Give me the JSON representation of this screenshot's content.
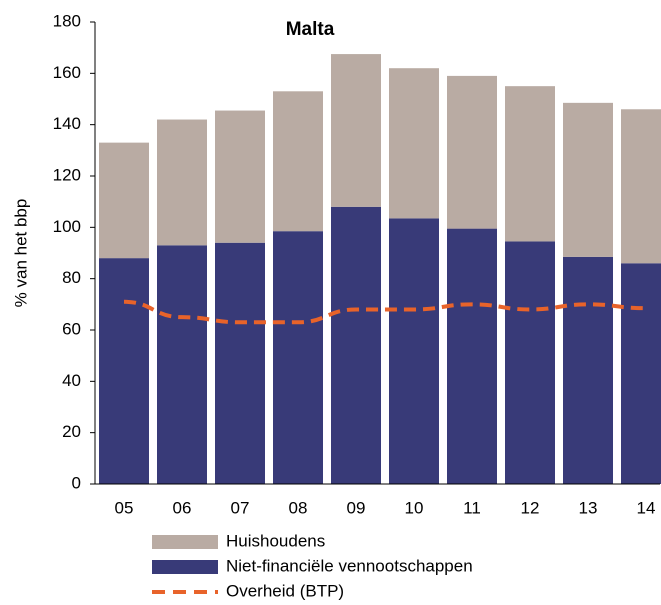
{
  "chart_data": {
    "type": "bar",
    "title": "Malta",
    "y_label": "% van het bbp",
    "categories": [
      "05",
      "06",
      "07",
      "08",
      "09",
      "10",
      "11",
      "12",
      "13",
      "14"
    ],
    "series": [
      {
        "name": "Niet-financiële vennootschappen",
        "type": "bar",
        "color": "#383a78",
        "values": [
          88,
          93,
          94,
          98.5,
          108,
          103.5,
          99.5,
          94.5,
          88.5,
          86
        ]
      },
      {
        "name": "Huishoudens",
        "type": "bar",
        "color": "#b9aba3",
        "values": [
          45,
          49,
          51.5,
          54.5,
          59.5,
          58.5,
          59.5,
          60.5,
          60,
          60
        ]
      },
      {
        "name": "Overheid (BTP)",
        "type": "line",
        "color": "#e8632a",
        "dashed": true,
        "values": [
          71,
          65,
          63,
          63,
          68,
          68,
          70,
          68,
          70,
          68.5
        ]
      }
    ],
    "ylim": [
      0,
      180
    ],
    "yticks": [
      0,
      20,
      40,
      60,
      80,
      100,
      120,
      140,
      160,
      180
    ],
    "grid": false,
    "stacked": true,
    "legend": "bottom"
  }
}
